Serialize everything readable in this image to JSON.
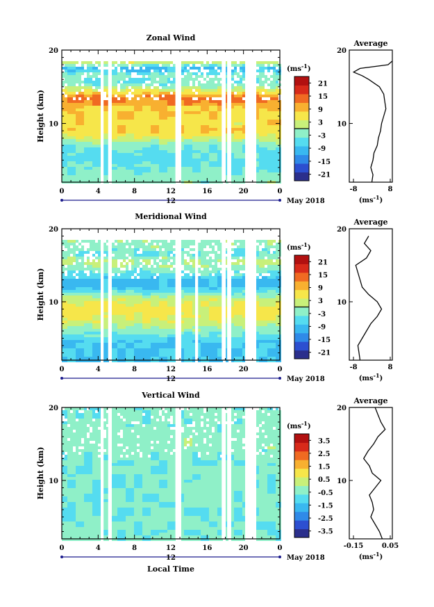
{
  "colors": {
    "colormap": [
      "#2b2f8c",
      "#2c4fd0",
      "#2f8ae8",
      "#39b8f0",
      "#55dcf0",
      "#8ff0c8",
      "#c8f07a",
      "#f6e64a",
      "#f8b030",
      "#f06a22",
      "#d82a1a",
      "#b21010"
    ],
    "background_gap": "#ffffff",
    "contour": "#000000"
  },
  "chart_data": [
    {
      "id": "zonal",
      "type": "heatmap",
      "title": "Zonal Wind",
      "xlabel": "",
      "ylabel": "Height (km)",
      "xlim": [
        0,
        24
      ],
      "ylim": [
        2,
        20
      ],
      "x_ticks": [
        "0",
        "4",
        "8",
        "12",
        "16",
        "20",
        "0"
      ],
      "y_ticks": [
        "10",
        "20"
      ],
      "date_label": "12",
      "month_label": "May 2018",
      "colorbar": {
        "unit": "(ms",
        "unit_exp": "-1",
        "unit_close": ")",
        "ticks": [
          "21",
          "15",
          "9",
          "3",
          "-3",
          "-9",
          "-15",
          "-21"
        ],
        "range": [
          -24,
          24
        ],
        "contour_marks": [
          0
        ]
      },
      "data_gaps_hours": [
        [
          4.3,
          4.6
        ],
        [
          5.1,
          5.4
        ],
        [
          12.5,
          13.0
        ],
        [
          17.6,
          17.9
        ],
        [
          18.2,
          18.5
        ],
        [
          20.2,
          21.4
        ]
      ],
      "field_profile_km": [
        [
          3,
          -2
        ],
        [
          5,
          -6
        ],
        [
          7,
          -3
        ],
        [
          9,
          8
        ],
        [
          10,
          6
        ],
        [
          12,
          8
        ],
        [
          13.5,
          14
        ],
        [
          14.5,
          4
        ],
        [
          15.5,
          -4
        ],
        [
          16.5,
          -2
        ],
        [
          17.5,
          -10
        ],
        [
          18.5,
          6
        ]
      ],
      "average_profile": {
        "title": "Average",
        "x_ticks": [
          "-8",
          "8"
        ],
        "xlim": [
          -12,
          8
        ],
        "xlabel": "(ms",
        "xlabel_exp": "-1",
        "xlabel_close": ")",
        "y_ticks": [
          "10",
          "20"
        ],
        "heights_km": [
          2,
          3,
          4,
          5,
          6,
          7,
          8,
          9,
          10,
          11,
          12,
          13,
          14,
          15,
          16,
          16.5,
          17,
          17.5,
          18,
          18.5
        ],
        "values": [
          -1.5,
          -1,
          -2,
          -1,
          -0.5,
          1,
          1.5,
          2.5,
          3,
          4,
          5,
          4.5,
          4,
          2,
          -3,
          -6,
          -10,
          -7,
          6,
          8
        ]
      }
    },
    {
      "id": "meridional",
      "type": "heatmap",
      "title": "Meridional Wind",
      "xlabel": "",
      "ylabel": "Height (km)",
      "xlim": [
        0,
        24
      ],
      "ylim": [
        2,
        20
      ],
      "x_ticks": [
        "0",
        "4",
        "8",
        "12",
        "16",
        "20",
        "0"
      ],
      "y_ticks": [
        "10",
        "20"
      ],
      "date_label": "12",
      "month_label": "May 2018",
      "colorbar": {
        "unit": "(ms",
        "unit_exp": "-1",
        "unit_close": ")",
        "ticks": [
          "21",
          "15",
          "9",
          "3",
          "-3",
          "-9",
          "-15",
          "-21"
        ],
        "range": [
          -24,
          24
        ],
        "contour_marks": [
          0
        ]
      },
      "data_gaps_hours": [
        [
          4.3,
          4.6
        ],
        [
          5.1,
          5.4
        ],
        [
          12.5,
          13.0
        ],
        [
          14.7,
          15.0
        ],
        [
          17.6,
          17.9
        ],
        [
          18.2,
          18.5
        ],
        [
          20.2,
          21.4
        ]
      ],
      "field_profile_km": [
        [
          3,
          -8
        ],
        [
          4.5,
          -8
        ],
        [
          6,
          -2
        ],
        [
          7,
          2
        ],
        [
          8,
          5
        ],
        [
          9,
          6
        ],
        [
          10,
          4
        ],
        [
          11,
          -2
        ],
        [
          12,
          -9
        ],
        [
          13,
          -9
        ],
        [
          14.5,
          -2
        ],
        [
          15.5,
          1
        ],
        [
          16.5,
          -4
        ],
        [
          17.5,
          -2
        ],
        [
          18.5,
          -1
        ]
      ],
      "average_profile": {
        "title": "Average",
        "x_ticks": [
          "-8",
          "8"
        ],
        "xlim": [
          -12,
          8
        ],
        "xlabel": "(ms",
        "xlabel_exp": "-1",
        "xlabel_close": ")",
        "y_ticks": [
          "10",
          "20"
        ],
        "heights_km": [
          2,
          3,
          4,
          5,
          6,
          7,
          8,
          9,
          10,
          11,
          12,
          13,
          14,
          15,
          16,
          17,
          18,
          19
        ],
        "values": [
          -7,
          -7.5,
          -8,
          -6,
          -4,
          -2,
          1,
          3,
          1,
          -3,
          -6,
          -7,
          -8,
          -9,
          -4,
          -2,
          -5,
          -3
        ]
      }
    },
    {
      "id": "vertical",
      "type": "heatmap",
      "title": "Vertical Wind",
      "xlabel": "Local Time",
      "ylabel": "Height (km)",
      "xlim": [
        0,
        24
      ],
      "ylim": [
        2,
        20
      ],
      "x_ticks": [
        "0",
        "4",
        "8",
        "12",
        "16",
        "20",
        "0"
      ],
      "y_ticks": [
        "10",
        "20"
      ],
      "date_label": "12",
      "month_label": "May 2018",
      "colorbar": {
        "unit": "(ms",
        "unit_exp": "-1",
        "unit_close": ")",
        "ticks": [
          "3.5",
          "2.5",
          "1.5",
          "0.5",
          "-0.5",
          "-1.5",
          "-2.5",
          "-3.5"
        ],
        "range": [
          -4,
          4
        ],
        "contour_marks": []
      },
      "data_gaps_hours": [
        [
          4.3,
          4.6
        ],
        [
          5.1,
          5.4
        ],
        [
          12.5,
          13.0
        ],
        [
          17.6,
          17.9
        ],
        [
          18.2,
          18.5
        ],
        [
          20.2,
          21.4
        ]
      ],
      "field_profile_km": [
        [
          3,
          -0.5
        ],
        [
          6,
          -0.6
        ],
        [
          9,
          -0.4
        ],
        [
          12,
          -0.5
        ],
        [
          15,
          -0.3
        ],
        [
          18,
          -0.4
        ]
      ],
      "average_profile": {
        "title": "Average",
        "x_ticks": [
          "-0.15",
          "0.05"
        ],
        "xlim": [
          -0.2,
          0.1
        ],
        "xlabel": "(ms",
        "xlabel_exp": "-1",
        "xlabel_close": ")",
        "y_ticks": [
          "10",
          "20"
        ],
        "heights_km": [
          2,
          3,
          4,
          5,
          6,
          7,
          8,
          9,
          10,
          11,
          12,
          13,
          14,
          15,
          16,
          17,
          18,
          19,
          20
        ],
        "values": [
          0.03,
          0.01,
          -0.02,
          -0.05,
          -0.03,
          -0.04,
          -0.06,
          -0.02,
          0.02,
          -0.04,
          -0.06,
          -0.1,
          -0.07,
          -0.03,
          0.0,
          0.05,
          0.02,
          0.0,
          -0.02
        ]
      }
    }
  ]
}
